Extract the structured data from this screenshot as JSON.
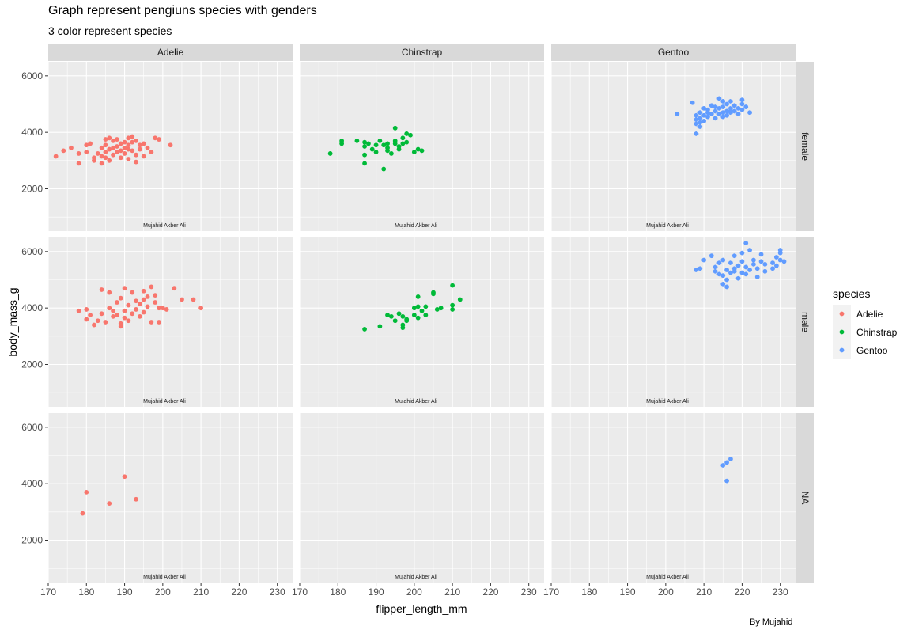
{
  "title": "Graph represent pengiuns species with genders",
  "subtitle": "3 color represent species",
  "caption": "By Mujahid",
  "watermark": "Mujahid Akber Ali",
  "colors": {
    "Adelie": "#F8766D",
    "Chinstrap": "#00BA38",
    "Gentoo": "#619CFF"
  },
  "chart_data": {
    "type": "scatter",
    "xlabel": "flipper_length_mm",
    "ylabel": "body_mass_g",
    "xlim": [
      170,
      234
    ],
    "ylim": [
      500,
      6500
    ],
    "x_ticks": [
      170,
      180,
      190,
      200,
      210,
      220,
      230
    ],
    "y_ticks": [
      2000,
      4000,
      6000
    ],
    "grid": true,
    "facet_cols": [
      "Adelie",
      "Chinstrap",
      "Gentoo"
    ],
    "facet_rows": [
      "female",
      "male",
      "NA"
    ],
    "legend": {
      "title": "species",
      "position": "right",
      "entries": [
        "Adelie",
        "Chinstrap",
        "Gentoo"
      ]
    },
    "series": [
      {
        "species": "Adelie",
        "sex": "female",
        "points": [
          [
            172,
            3150
          ],
          [
            174,
            3350
          ],
          [
            176,
            3450
          ],
          [
            178,
            3250
          ],
          [
            178,
            2900
          ],
          [
            180,
            3550
          ],
          [
            180,
            3300
          ],
          [
            181,
            3600
          ],
          [
            182,
            3100
          ],
          [
            182,
            3000
          ],
          [
            183,
            3250
          ],
          [
            184,
            3450
          ],
          [
            184,
            3150
          ],
          [
            184,
            2900
          ],
          [
            185,
            3300
          ],
          [
            185,
            3550
          ],
          [
            185,
            3750
          ],
          [
            186,
            3400
          ],
          [
            186,
            3000
          ],
          [
            187,
            3450
          ],
          [
            187,
            3700
          ],
          [
            187,
            3200
          ],
          [
            188,
            3300
          ],
          [
            188,
            3500
          ],
          [
            189,
            3600
          ],
          [
            189,
            3100
          ],
          [
            190,
            3450
          ],
          [
            190,
            3250
          ],
          [
            191,
            3550
          ],
          [
            191,
            3800
          ],
          [
            191,
            3050
          ],
          [
            192,
            3350
          ],
          [
            192,
            3650
          ],
          [
            193,
            3200
          ],
          [
            193,
            2950
          ],
          [
            194,
            3400
          ],
          [
            195,
            3600
          ],
          [
            195,
            3150
          ],
          [
            196,
            3450
          ],
          [
            197,
            3300
          ],
          [
            198,
            3800
          ],
          [
            199,
            3750
          ],
          [
            202,
            3550
          ],
          [
            186,
            3800
          ],
          [
            188,
            3750
          ],
          [
            190,
            3650
          ],
          [
            192,
            3850
          ],
          [
            194,
            3550
          ],
          [
            185,
            3100
          ],
          [
            189,
            3350
          ],
          [
            191,
            3400
          ],
          [
            193,
            3700
          ]
        ]
      },
      {
        "species": "Adelie",
        "sex": "male",
        "points": [
          [
            178,
            3900
          ],
          [
            180,
            3950
          ],
          [
            180,
            3600
          ],
          [
            181,
            3750
          ],
          [
            182,
            3400
          ],
          [
            183,
            3550
          ],
          [
            184,
            4650
          ],
          [
            184,
            3800
          ],
          [
            185,
            3500
          ],
          [
            186,
            4000
          ],
          [
            186,
            4550
          ],
          [
            187,
            3900
          ],
          [
            187,
            3700
          ],
          [
            188,
            4200
          ],
          [
            188,
            3750
          ],
          [
            189,
            3450
          ],
          [
            189,
            4350
          ],
          [
            190,
            3900
          ],
          [
            190,
            4700
          ],
          [
            190,
            3650
          ],
          [
            191,
            4100
          ],
          [
            191,
            3550
          ],
          [
            192,
            4550
          ],
          [
            192,
            3800
          ],
          [
            193,
            4250
          ],
          [
            193,
            3950
          ],
          [
            194,
            4150
          ],
          [
            194,
            3700
          ],
          [
            195,
            4600
          ],
          [
            195,
            4300
          ],
          [
            195,
            3850
          ],
          [
            196,
            4400
          ],
          [
            196,
            4050
          ],
          [
            197,
            4750
          ],
          [
            197,
            3500
          ],
          [
            198,
            4450
          ],
          [
            198,
            4200
          ],
          [
            199,
            4000
          ],
          [
            199,
            3500
          ],
          [
            200,
            4000
          ],
          [
            201,
            3950
          ],
          [
            203,
            4700
          ],
          [
            205,
            4300
          ],
          [
            208,
            4300
          ],
          [
            210,
            4000
          ],
          [
            189,
            3350
          ],
          [
            190,
            3900
          ]
        ]
      },
      {
        "species": "Adelie",
        "sex": "NA",
        "points": [
          [
            179,
            2950
          ],
          [
            180,
            3700
          ],
          [
            186,
            3300
          ],
          [
            190,
            4250
          ],
          [
            193,
            3450
          ]
        ]
      },
      {
        "species": "Chinstrap",
        "sex": "female",
        "points": [
          [
            178,
            3250
          ],
          [
            181,
            3700
          ],
          [
            181,
            3600
          ],
          [
            185,
            3700
          ],
          [
            187,
            3650
          ],
          [
            187,
            3500
          ],
          [
            187,
            3200
          ],
          [
            187,
            2900
          ],
          [
            188,
            3600
          ],
          [
            189,
            3400
          ],
          [
            190,
            3550
          ],
          [
            190,
            3300
          ],
          [
            191,
            3700
          ],
          [
            192,
            3550
          ],
          [
            192,
            2700
          ],
          [
            193,
            3600
          ],
          [
            193,
            3450
          ],
          [
            194,
            3250
          ],
          [
            195,
            3700
          ],
          [
            195,
            4150
          ],
          [
            195,
            3600
          ],
          [
            196,
            3500
          ],
          [
            197,
            3800
          ],
          [
            197,
            3600
          ],
          [
            198,
            3950
          ],
          [
            198,
            3650
          ],
          [
            199,
            3900
          ],
          [
            200,
            3300
          ],
          [
            201,
            3400
          ],
          [
            202,
            3350
          ],
          [
            193,
            3350
          ],
          [
            196,
            3400
          ]
        ]
      },
      {
        "species": "Chinstrap",
        "sex": "male",
        "points": [
          [
            187,
            3250
          ],
          [
            191,
            3350
          ],
          [
            193,
            3750
          ],
          [
            194,
            3700
          ],
          [
            195,
            3550
          ],
          [
            196,
            3800
          ],
          [
            197,
            3700
          ],
          [
            197,
            3400
          ],
          [
            197,
            3300
          ],
          [
            198,
            3550
          ],
          [
            198,
            3600
          ],
          [
            200,
            3750
          ],
          [
            200,
            4000
          ],
          [
            201,
            4050
          ],
          [
            201,
            4400
          ],
          [
            201,
            3650
          ],
          [
            202,
            3900
          ],
          [
            203,
            4050
          ],
          [
            203,
            3750
          ],
          [
            205,
            4550
          ],
          [
            205,
            4500
          ],
          [
            206,
            3950
          ],
          [
            207,
            4000
          ],
          [
            210,
            4800
          ],
          [
            210,
            4100
          ],
          [
            210,
            3950
          ],
          [
            212,
            4300
          ]
        ]
      },
      {
        "species": "Gentoo",
        "sex": "female",
        "points": [
          [
            203,
            4650
          ],
          [
            207,
            5050
          ],
          [
            208,
            4600
          ],
          [
            208,
            4450
          ],
          [
            208,
            4300
          ],
          [
            208,
            3950
          ],
          [
            209,
            4700
          ],
          [
            209,
            4500
          ],
          [
            209,
            4200
          ],
          [
            210,
            4850
          ],
          [
            210,
            4600
          ],
          [
            210,
            4400
          ],
          [
            211,
            4700
          ],
          [
            211,
            4550
          ],
          [
            212,
            4950
          ],
          [
            212,
            4650
          ],
          [
            213,
            4750
          ],
          [
            213,
            4500
          ],
          [
            214,
            5200
          ],
          [
            214,
            4850
          ],
          [
            214,
            4650
          ],
          [
            215,
            5100
          ],
          [
            215,
            4900
          ],
          [
            215,
            4700
          ],
          [
            216,
            5000
          ],
          [
            216,
            4750
          ],
          [
            216,
            4600
          ],
          [
            217,
            5100
          ],
          [
            217,
            4850
          ],
          [
            217,
            4750
          ],
          [
            218,
            4950
          ],
          [
            218,
            4750
          ],
          [
            219,
            4650
          ],
          [
            219,
            4850
          ],
          [
            220,
            4800
          ],
          [
            220,
            5000
          ],
          [
            220,
            5150
          ],
          [
            221,
            4900
          ],
          [
            222,
            4700
          ],
          [
            209,
            4350
          ],
          [
            211,
            4800
          ],
          [
            213,
            4900
          ],
          [
            215,
            4550
          ],
          [
            217,
            4700
          ]
        ]
      },
      {
        "species": "Gentoo",
        "sex": "male",
        "points": [
          [
            208,
            5350
          ],
          [
            209,
            5400
          ],
          [
            210,
            5700
          ],
          [
            212,
            5850
          ],
          [
            213,
            5300
          ],
          [
            213,
            5450
          ],
          [
            214,
            5600
          ],
          [
            214,
            5200
          ],
          [
            215,
            4850
          ],
          [
            215,
            5150
          ],
          [
            215,
            5700
          ],
          [
            216,
            5000
          ],
          [
            216,
            5350
          ],
          [
            216,
            4750
          ],
          [
            217,
            5250
          ],
          [
            217,
            5600
          ],
          [
            218,
            5850
          ],
          [
            218,
            5400
          ],
          [
            219,
            5050
          ],
          [
            219,
            5500
          ],
          [
            220,
            5250
          ],
          [
            220,
            5650
          ],
          [
            220,
            5950
          ],
          [
            221,
            5450
          ],
          [
            221,
            6300
          ],
          [
            221,
            5200
          ],
          [
            222,
            5350
          ],
          [
            222,
            6050
          ],
          [
            223,
            5550
          ],
          [
            223,
            5700
          ],
          [
            224,
            5400
          ],
          [
            224,
            5100
          ],
          [
            225,
            5650
          ],
          [
            225,
            5900
          ],
          [
            226,
            5550
          ],
          [
            228,
            5600
          ],
          [
            228,
            5400
          ],
          [
            229,
            5800
          ],
          [
            229,
            5500
          ],
          [
            230,
            5950
          ],
          [
            230,
            5700
          ],
          [
            230,
            6050
          ],
          [
            231,
            5650
          ],
          [
            218,
            5300
          ],
          [
            226,
            5300
          ]
        ]
      },
      {
        "species": "Gentoo",
        "sex": "NA",
        "points": [
          [
            215,
            4650
          ],
          [
            216,
            4100
          ],
          [
            216,
            4750
          ],
          [
            217,
            4875
          ]
        ]
      }
    ]
  }
}
